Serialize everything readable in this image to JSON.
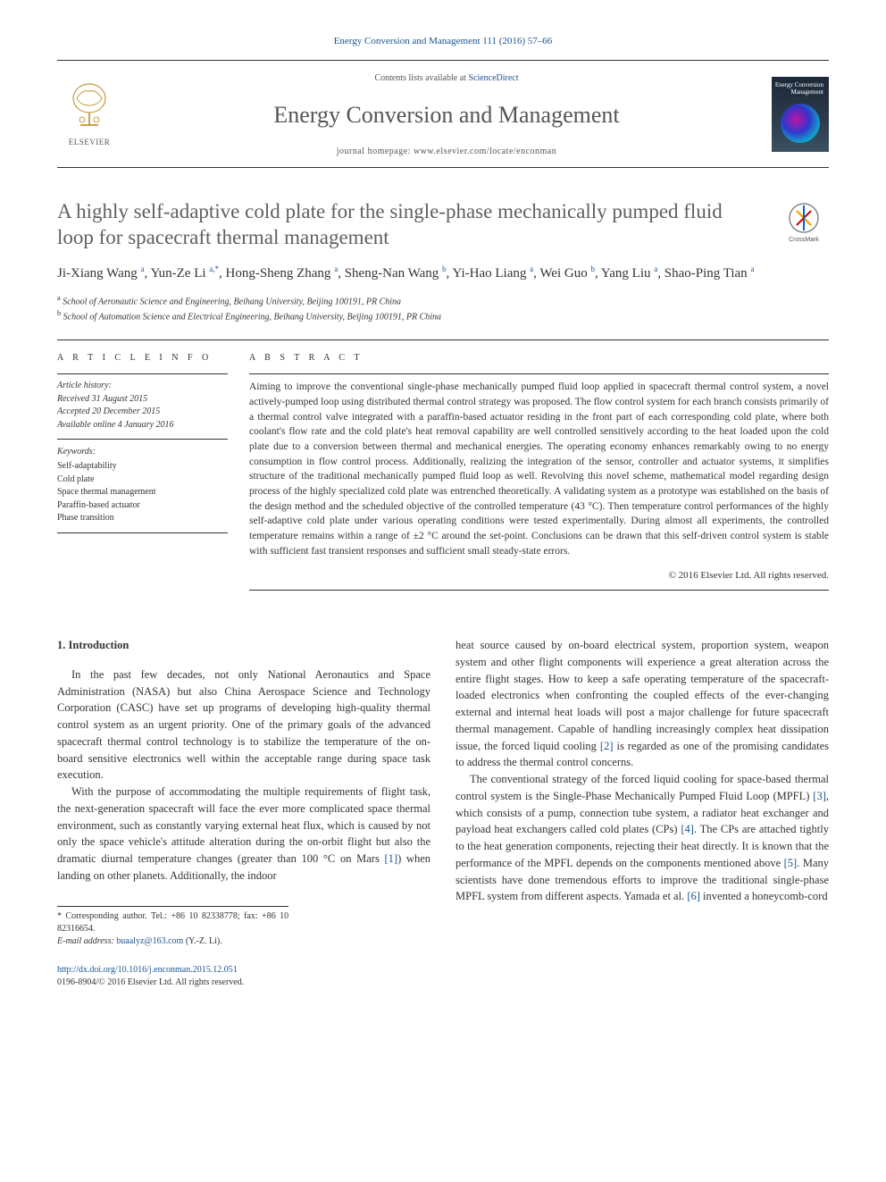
{
  "header": {
    "citation": "Energy Conversion and Management 111 (2016) 57–66",
    "contents_prefix": "Contents lists available at ",
    "contents_link": "ScienceDirect",
    "journal_title": "Energy Conversion and Management",
    "homepage_prefix": "journal homepage: ",
    "homepage_url": "www.elsevier.com/locate/enconman",
    "publisher": "ELSEVIER",
    "cover_label": "Energy\nConversion\nManagement"
  },
  "crossmark": "CrossMark",
  "title": "A highly self-adaptive cold plate for the single-phase mechanically pumped fluid loop for spacecraft thermal management",
  "authors_html": "Ji-Xiang Wang <sup class='sup-link'>a</sup>, Yun-Ze Li <sup class='sup-link'>a,*</sup>, Hong-Sheng Zhang <sup class='sup-link'>a</sup>, Sheng-Nan Wang <sup class='sup-link'>b</sup>, Yi-Hao Liang <sup class='sup-link'>a</sup>, Wei Guo <sup class='sup-link'>b</sup>, Yang Liu <sup class='sup-link'>a</sup>, Shao-Ping Tian <sup class='sup-link'>a</sup>",
  "affiliations": [
    {
      "sup": "a",
      "text": "School of Aeronautic Science and Engineering, Beihang University, Beijing 100191, PR China"
    },
    {
      "sup": "b",
      "text": "School of Automation Science and Electrical Engineering, Beihang University, Beijing 100191, PR China"
    }
  ],
  "info": {
    "heading": "A R T I C L E   I N F O",
    "history_label": "Article history:",
    "history": [
      "Received 31 August 2015",
      "Accepted 20 December 2015",
      "Available online 4 January 2016"
    ],
    "keywords_label": "Keywords:",
    "keywords": [
      "Self-adaptability",
      "Cold plate",
      "Space thermal management",
      "Paraffin-based actuator",
      "Phase transition"
    ]
  },
  "abstract": {
    "heading": "A B S T R A C T",
    "text": "Aiming to improve the conventional single-phase mechanically pumped fluid loop applied in spacecraft thermal control system, a novel actively-pumped loop using distributed thermal control strategy was proposed. The flow control system for each branch consists primarily of a thermal control valve integrated with a paraffin-based actuator residing in the front part of each corresponding cold plate, where both coolant's flow rate and the cold plate's heat removal capability are well controlled sensitively according to the heat loaded upon the cold plate due to a conversion between thermal and mechanical energies. The operating economy enhances remarkably owing to no energy consumption in flow control process. Additionally, realizing the integration of the sensor, controller and actuator systems, it simplifies structure of the traditional mechanically pumped fluid loop as well. Revolving this novel scheme, mathematical model regarding design process of the highly specialized cold plate was entrenched theoretically. A validating system as a prototype was established on the basis of the design method and the scheduled objective of the controlled temperature (43 °C). Then temperature control performances of the highly self-adaptive cold plate under various operating conditions were tested experimentally. During almost all experiments, the controlled temperature remains within a range of ±2 °C around the set-point. Conclusions can be drawn that this self-driven control system is stable with sufficient fast transient responses and sufficient small steady-state errors.",
    "copyright": "© 2016 Elsevier Ltd. All rights reserved."
  },
  "body": {
    "section_heading": "1. Introduction",
    "left_paragraphs": [
      "In the past few decades, not only National Aeronautics and Space Administration (NASA) but also China Aerospace Science and Technology Corporation (CASC) have set up programs of developing high-quality thermal control system as an urgent priority. One of the primary goals of the advanced spacecraft thermal control technology is to stabilize the temperature of the on-board sensitive electronics well within the acceptable range during space task execution.",
      "With the purpose of accommodating the multiple requirements of flight task, the next-generation spacecraft will face the ever more complicated space thermal environment, such as constantly varying external heat flux, which is caused by not only the space vehicle's attitude alteration during the on-orbit flight but also the dramatic diurnal temperature changes (greater than 100 °C on Mars <span class='ref-link'>[1]</span>) when landing on other planets. Additionally, the indoor"
    ],
    "right_paragraphs": [
      "heat source caused by on-board electrical system, proportion system, weapon system and other flight components will experience a great alteration across the entire flight stages. How to keep a safe operating temperature of the spacecraft-loaded electronics when confronting the coupled effects of the ever-changing external and internal heat loads will post a major challenge for future spacecraft thermal management. Capable of handling increasingly complex heat dissipation issue, the forced liquid cooling <span class='ref-link'>[2]</span> is regarded as one of the promising candidates to address the thermal control concerns.",
      "The conventional strategy of the forced liquid cooling for space-based thermal control system is the Single-Phase Mechanically Pumped Fluid Loop (MPFL) <span class='ref-link'>[3]</span>, which consists of a pump, connection tube system, a radiator heat exchanger and payload heat exchangers called cold plates (CPs) <span class='ref-link'>[4]</span>. The CPs are attached tightly to the heat generation components, rejecting their heat directly. It is known that the performance of the MPFL depends on the components mentioned above <span class='ref-link'>[5]</span>. Many scientists have done tremendous efforts to improve the traditional single-phase MPFL system from different aspects. Yamada et al. <span class='ref-link'>[6]</span> invented a honeycomb-cord"
    ]
  },
  "footnotes": {
    "corr": "* Corresponding author. Tel.: +86 10 82338778; fax: +86 10 82316654.",
    "email_label": "E-mail address: ",
    "email": "buaalyz@163.com",
    "email_tail": " (Y.-Z. Li)."
  },
  "doi": {
    "url": "http://dx.doi.org/10.1016/j.enconman.2015.12.051",
    "issn": "0196-8904/© 2016 Elsevier Ltd. All rights reserved."
  },
  "colors": {
    "link": "#1a5490",
    "text": "#333333",
    "title_grey": "#606060"
  }
}
